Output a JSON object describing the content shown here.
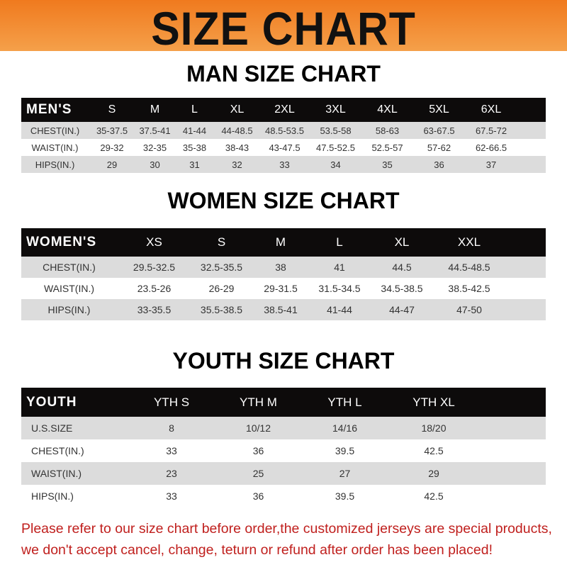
{
  "banner": {
    "title": "SIZE CHART",
    "color": "#f08a2a"
  },
  "men": {
    "title": "MAN SIZE CHART",
    "header": [
      "MEN'S",
      "S",
      "M",
      "L",
      "XL",
      "2XL",
      "3XL",
      "4XL",
      "5XL",
      "6XL"
    ],
    "rows": [
      [
        "CHEST(IN.)",
        "35-37.5",
        "37.5-41",
        "41-44",
        "44-48.5",
        "48.5-53.5",
        "53.5-58",
        "58-63",
        "63-67.5",
        "67.5-72"
      ],
      [
        "WAIST(IN.)",
        "29-32",
        "32-35",
        "35-38",
        "38-43",
        "43-47.5",
        "47.5-52.5",
        "52.5-57",
        "57-62",
        "62-66.5"
      ],
      [
        "HIPS(IN.)",
        "29",
        "30",
        "31",
        "32",
        "33",
        "34",
        "35",
        "36",
        "37"
      ]
    ]
  },
  "women": {
    "title": "WOMEN SIZE CHART",
    "header": [
      "WOMEN'S",
      "XS",
      "S",
      "M",
      "L",
      "XL",
      "XXL"
    ],
    "rows": [
      [
        "CHEST(IN.)",
        "29.5-32.5",
        "32.5-35.5",
        "38",
        "41",
        "44.5",
        "44.5-48.5"
      ],
      [
        "WAIST(IN.)",
        "23.5-26",
        "26-29",
        "29-31.5",
        "31.5-34.5",
        "34.5-38.5",
        "38.5-42.5"
      ],
      [
        "HIPS(IN.)",
        "33-35.5",
        "35.5-38.5",
        "38.5-41",
        "41-44",
        "44-47",
        "47-50"
      ]
    ]
  },
  "youth": {
    "title": "YOUTH SIZE CHART",
    "header": [
      "YOUTH",
      "YTH S",
      "YTH M",
      "YTH L",
      "YTH XL"
    ],
    "rows": [
      [
        "U.S.SIZE",
        "8",
        "10/12",
        "14/16",
        "18/20"
      ],
      [
        "CHEST(IN.)",
        "33",
        "36",
        "39.5",
        "42.5"
      ],
      [
        "WAIST(IN.)",
        "23",
        "25",
        "27",
        "29"
      ],
      [
        "HIPS(IN.)",
        "33",
        "36",
        "39.5",
        "42.5"
      ]
    ]
  },
  "notice": {
    "line1": "Please refer to our size chart before order,the customized jerseys are special products,",
    "line2": "we don't accept cancel, change, teturn or refund after order has been placed!",
    "color": "#c0201e"
  }
}
